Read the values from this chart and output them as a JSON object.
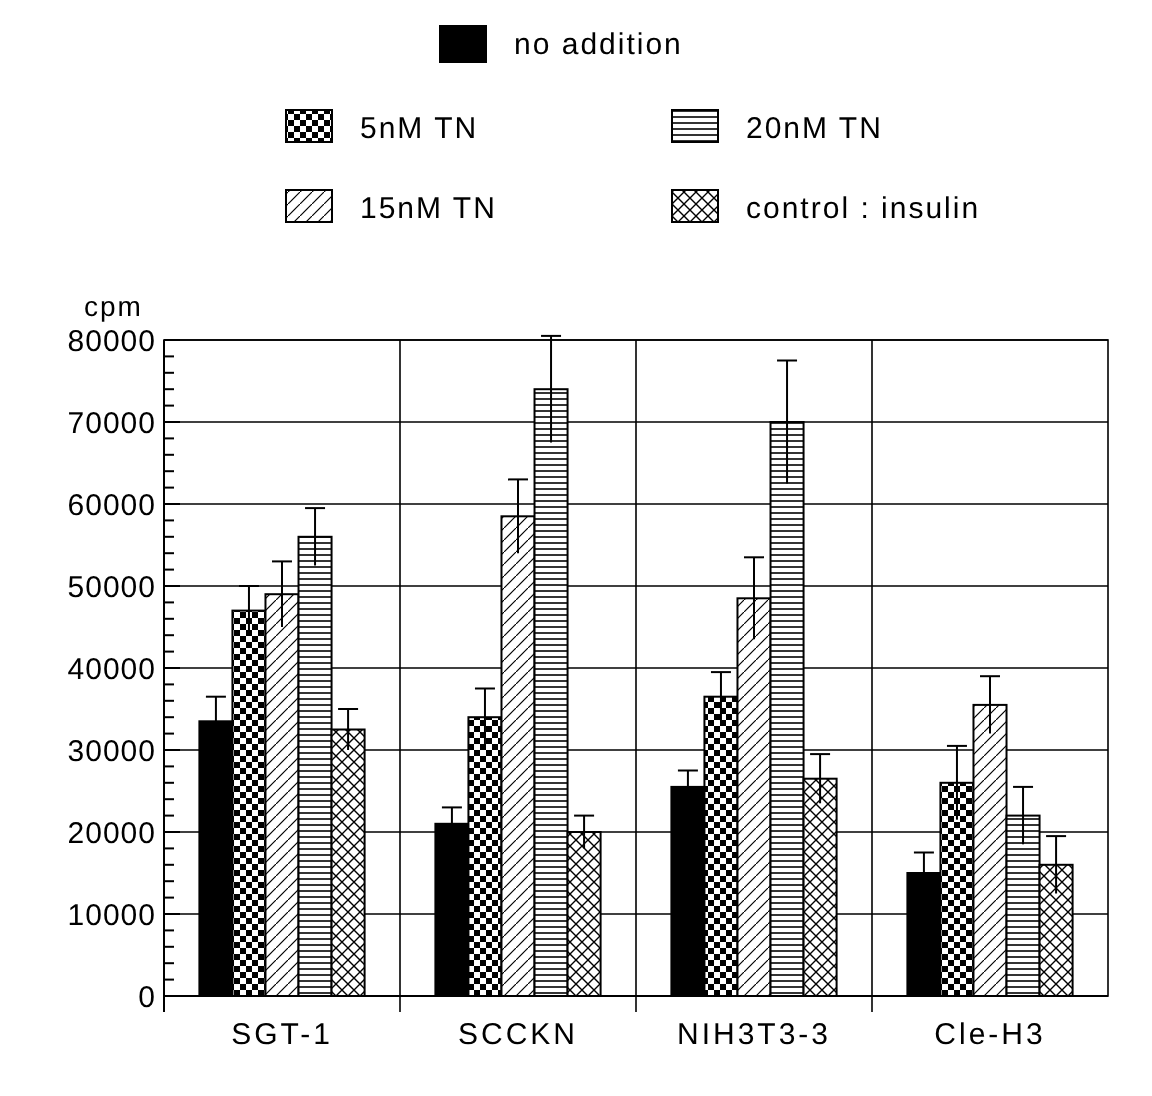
{
  "chart_data": {
    "type": "bar",
    "ylabel": "cpm",
    "categories": [
      "SGT-1",
      "SCCKN",
      "NIH3T3-3",
      "Cle-H3"
    ],
    "series": [
      {
        "name": "no addition",
        "color": "#000000",
        "values": [
          33500,
          21000,
          25500,
          15000
        ],
        "errors": [
          3000,
          2000,
          2000,
          2500
        ]
      },
      {
        "name": "5nM TN",
        "color": "#000000",
        "values": [
          47000,
          34000,
          36500,
          26000
        ],
        "errors": [
          3000,
          3500,
          3000,
          4500
        ]
      },
      {
        "name": "15nM TN",
        "color": "#000000",
        "values": [
          49000,
          58500,
          48500,
          35500
        ],
        "errors": [
          4000,
          4500,
          5000,
          3500
        ]
      },
      {
        "name": "20nM TN",
        "color": "#000000",
        "values": [
          56000,
          74000,
          70000,
          22000
        ],
        "errors": [
          3500,
          6500,
          7500,
          3500
        ]
      },
      {
        "name": "control : insulin",
        "color": "#000000",
        "values": [
          32500,
          20000,
          26500,
          16000
        ],
        "errors": [
          2500,
          2000,
          3000,
          3500
        ]
      }
    ],
    "ylim": [
      0,
      80000
    ],
    "yticks": [
      0,
      {
        "value": 2000,
        "label": null
      },
      {
        "value": 4000,
        "label": null
      },
      {
        "value": 6000,
        "label": null
      },
      {
        "value": 8000,
        "label": null
      },
      10000,
      {
        "value": 12000,
        "label": null
      },
      {
        "value": 14000,
        "label": null
      },
      {
        "value": 16000,
        "label": null
      },
      {
        "value": 18000,
        "label": null
      },
      20000,
      {
        "value": 22000,
        "label": null
      },
      {
        "value": 24000,
        "label": null
      },
      {
        "value": 26000,
        "label": null
      },
      {
        "value": 28000,
        "label": null
      },
      30000,
      {
        "value": 32000,
        "label": null
      },
      {
        "value": 34000,
        "label": null
      },
      {
        "value": 36000,
        "label": null
      },
      {
        "value": 38000,
        "label": null
      },
      40000,
      {
        "value": 42000,
        "label": null
      },
      {
        "value": 44000,
        "label": null
      },
      {
        "value": 46000,
        "label": null
      },
      {
        "value": 48000,
        "label": null
      },
      50000,
      {
        "value": 52000,
        "label": null
      },
      {
        "value": 54000,
        "label": null
      },
      {
        "value": 56000,
        "label": null
      },
      {
        "value": 58000,
        "label": null
      },
      60000,
      {
        "value": 62000,
        "label": null
      },
      {
        "value": 64000,
        "label": null
      },
      {
        "value": 66000,
        "label": null
      },
      {
        "value": 68000,
        "label": null
      },
      70000,
      {
        "value": 72000,
        "label": null
      },
      {
        "value": 74000,
        "label": null
      },
      {
        "value": 76000,
        "label": null
      },
      {
        "value": 78000,
        "label": null
      },
      80000
    ],
    "grid": true,
    "legend": "top"
  }
}
